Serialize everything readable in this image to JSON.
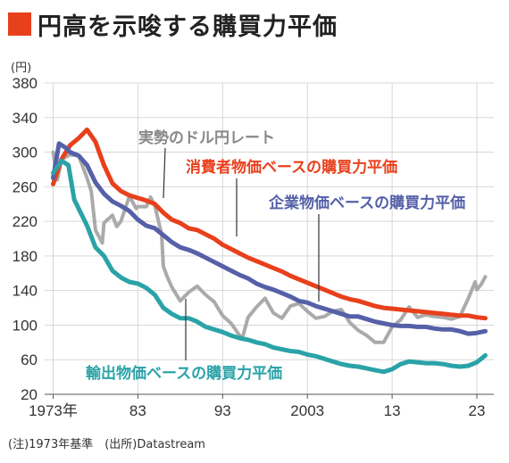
{
  "header": {
    "title": "円高を示唆する購買力平価"
  },
  "footer": {
    "note": "(注)1973年基準　(出所)Datastream"
  },
  "colors": {
    "cpi": "#e8401c",
    "corp": "#5560a8",
    "export": "#2aa3a8",
    "market": "#aaaaaa",
    "title_mark": "#e8401c"
  },
  "chart_data": {
    "type": "line",
    "y_unit": "(円)",
    "ylim": [
      20,
      380
    ],
    "yticks": [
      20,
      60,
      100,
      140,
      180,
      220,
      260,
      300,
      340,
      380
    ],
    "xlim": [
      1972,
      2025
    ],
    "xticks": [
      {
        "value": 1973,
        "label": "1973年"
      },
      {
        "value": 1983,
        "label": "83"
      },
      {
        "value": 1993,
        "label": "93"
      },
      {
        "value": 2003,
        "label": "2003"
      },
      {
        "value": 2013,
        "label": "13"
      },
      {
        "value": 2023,
        "label": "23"
      }
    ],
    "grid": true,
    "series": [
      {
        "key": "market",
        "name": "実勢のドル円レート",
        "x": [
          1973,
          1973.5,
          1974,
          1975,
          1976,
          1977,
          1977.5,
          1978,
          1978.8,
          1979,
          1980,
          1980.5,
          1981,
          1982,
          1982.8,
          1983,
          1984,
          1984.5,
          1985,
          1985.8,
          1986,
          1986.5,
          1987,
          1988,
          1989,
          1990,
          1991,
          1992,
          1993,
          1994,
          1995.3,
          1996,
          1997,
          1998,
          1999,
          2000,
          2001,
          2002,
          2003,
          2004,
          2005,
          2006,
          2007,
          2008,
          2009,
          2010,
          2011,
          2012,
          2013,
          2014,
          2015,
          2016,
          2017,
          2018,
          2019,
          2020,
          2021,
          2022,
          2022.8,
          2023,
          2023.5,
          2024
        ],
        "values": [
          300,
          268,
          292,
          297,
          296,
          270,
          255,
          210,
          195,
          218,
          227,
          214,
          220,
          249,
          235,
          237,
          237,
          248,
          238,
          205,
          168,
          155,
          144,
          128,
          138,
          145,
          135,
          127,
          111,
          102,
          84,
          109,
          121,
          131,
          114,
          108,
          122,
          125,
          116,
          108,
          110,
          116,
          118,
          103,
          94,
          88,
          80,
          80,
          98,
          106,
          121,
          109,
          112,
          110,
          109,
          107,
          110,
          131,
          150,
          141,
          147,
          156
        ]
      },
      {
        "key": "cpi",
        "name": "消費者物価ベースの購買力平価",
        "x": [
          1973,
          1974,
          1975,
          1976,
          1977,
          1978,
          1979,
          1980,
          1981,
          1982,
          1983,
          1984,
          1985,
          1986,
          1987,
          1988,
          1989,
          1990,
          1991,
          1992,
          1993,
          1994,
          1995,
          1996,
          1997,
          1998,
          1999,
          2000,
          2001,
          2002,
          2003,
          2004,
          2005,
          2006,
          2007,
          2008,
          2009,
          2010,
          2011,
          2012,
          2013,
          2014,
          2015,
          2016,
          2017,
          2018,
          2019,
          2020,
          2021,
          2022,
          2023,
          2024
        ],
        "values": [
          263,
          292,
          308,
          316,
          326,
          312,
          285,
          264,
          255,
          250,
          247,
          244,
          240,
          230,
          222,
          218,
          212,
          210,
          205,
          200,
          193,
          188,
          183,
          178,
          174,
          170,
          166,
          162,
          157,
          153,
          149,
          145,
          141,
          137,
          133,
          130,
          128,
          125,
          122,
          120,
          119,
          118,
          117,
          116,
          115,
          114,
          113,
          112,
          111,
          111,
          109,
          108
        ]
      },
      {
        "key": "corp",
        "name": "企業物価ベースの購買力平価",
        "x": [
          1973,
          1973.7,
          1974.5,
          1975,
          1976,
          1977,
          1978,
          1979,
          1980,
          1981,
          1982,
          1983,
          1984,
          1985,
          1986,
          1987,
          1988,
          1989,
          1990,
          1991,
          1992,
          1993,
          1994,
          1995,
          1996,
          1997,
          1998,
          1999,
          2000,
          2001,
          2002,
          2003,
          2004,
          2005,
          2006,
          2007,
          2008,
          2009,
          2010,
          2011,
          2012,
          2013,
          2014,
          2015,
          2016,
          2017,
          2018,
          2019,
          2020,
          2021,
          2022,
          2023,
          2024
        ],
        "values": [
          270,
          310,
          305,
          300,
          296,
          285,
          265,
          252,
          243,
          238,
          232,
          222,
          215,
          212,
          204,
          196,
          190,
          187,
          183,
          178,
          173,
          168,
          163,
          158,
          154,
          148,
          144,
          141,
          137,
          133,
          128,
          126,
          122,
          119,
          116,
          113,
          110,
          110,
          107,
          104,
          102,
          100,
          99,
          99,
          98,
          98,
          96,
          95,
          95,
          93,
          90,
          91,
          93
        ]
      },
      {
        "key": "export",
        "name": "輸出物価ベースの購買力平価",
        "x": [
          1973,
          1974,
          1974.8,
          1975.5,
          1976,
          1977,
          1978,
          1979,
          1980,
          1981,
          1982,
          1983,
          1984,
          1985,
          1986,
          1987,
          1988,
          1989,
          1990,
          1991,
          1992,
          1993,
          1994,
          1995,
          1996,
          1997,
          1998,
          1999,
          2000,
          2001,
          2002,
          2003,
          2004,
          2005,
          2006,
          2007,
          2008,
          2009,
          2010,
          2011,
          2012,
          2013,
          2014,
          2015,
          2016,
          2017,
          2018,
          2019,
          2020,
          2021,
          2022,
          2023,
          2024
        ],
        "values": [
          276,
          290,
          285,
          245,
          235,
          215,
          190,
          180,
          163,
          155,
          150,
          148,
          143,
          135,
          120,
          113,
          108,
          108,
          104,
          98,
          95,
          92,
          88,
          85,
          83,
          80,
          78,
          74,
          72,
          70,
          69,
          66,
          64,
          61,
          58,
          55,
          53,
          52,
          50,
          48,
          46,
          49,
          55,
          58,
          57,
          56,
          56,
          55,
          53,
          52,
          53,
          57,
          65
        ]
      }
    ],
    "annotations": [
      {
        "key": "market",
        "text": "実勢のドル円レート"
      },
      {
        "key": "cpi",
        "text": "消費者物価ベースの購買力平価"
      },
      {
        "key": "corp",
        "text": "企業物価ベースの購買力平価"
      },
      {
        "key": "export",
        "text": "輸出物価ベースの購買力平価"
      }
    ]
  }
}
